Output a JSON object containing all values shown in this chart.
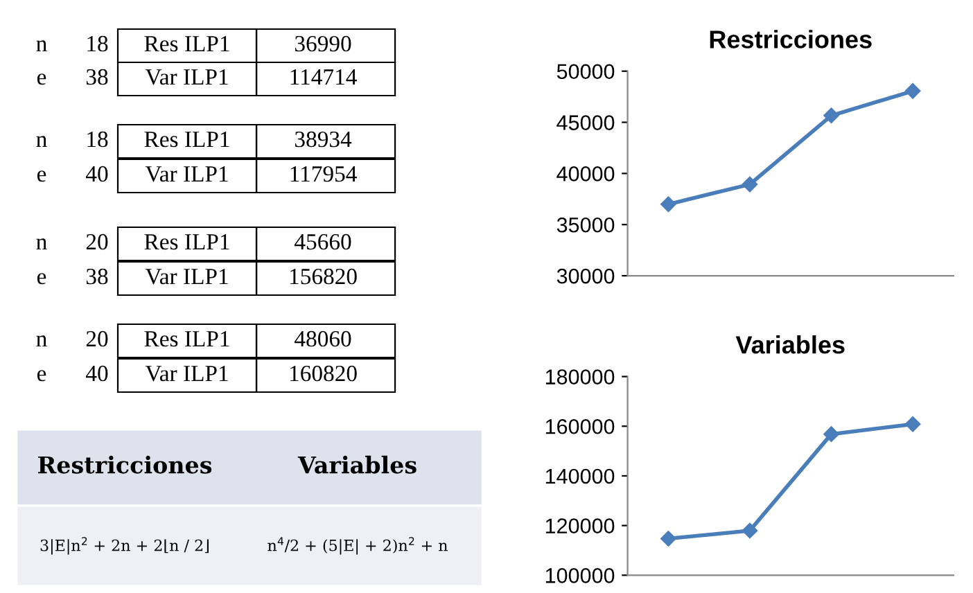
{
  "chart_data": [
    {
      "type": "other",
      "annotations": [
        "n",
        "18",
        "Res ILP1",
        "36990",
        "e",
        "38",
        "Var ILP1",
        "114714",
        "n",
        "18",
        "Res ILP1",
        "38934",
        "e",
        "40",
        "Var ILP1",
        "117954",
        "n",
        "20",
        "Res ILP1",
        "45660",
        "e",
        "38",
        "Var ILP1",
        "156820",
        "n",
        "20",
        "Res ILP1",
        "48060",
        "e",
        "40",
        "Var ILP1",
        "160820",
        "Restricciones",
        "Variables",
        "3|E|n$^{2}$ + 2n + 2⌊n / 2⌋",
        "n$^{4}$/2 + (5|E| + 2)n$^{2}$ + n"
      ]
    },
    {
      "type": "line",
      "title": "Restricciones",
      "categories": [
        null,
        null,
        null,
        null
      ],
      "series": [
        {
          "color": "#4a7ebb",
          "values": [
            36990,
            38934,
            45660,
            48060
          ]
        }
      ],
      "ylim": [
        30000,
        50000
      ],
      "yticks": [
        30000,
        35000,
        40000,
        45000,
        50000
      ],
      "marker": "diamond",
      "tick_labels": "y"
    },
    {
      "type": "line",
      "title": "Variables",
      "categories": [
        null,
        null,
        null,
        null
      ],
      "series": [
        {
          "color": "#4a7ebb",
          "values": [
            114714,
            117954,
            156820,
            160820
          ]
        }
      ],
      "ylim": [
        100000,
        180000
      ],
      "yticks": [
        100000,
        120000,
        140000,
        160000,
        180000
      ],
      "marker": "diamond",
      "tick_labels": "y"
    }
  ]
}
